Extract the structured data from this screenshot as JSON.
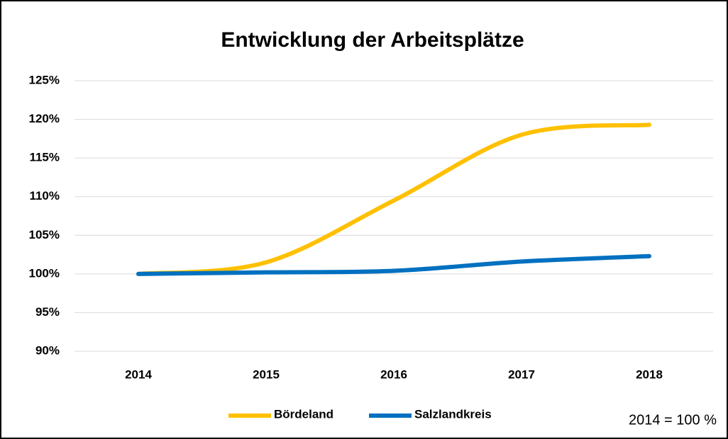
{
  "chart_data": {
    "type": "line",
    "title": "Entwicklung der Arbeitsplätze",
    "categories": [
      "2014",
      "2015",
      "2016",
      "2017",
      "2018"
    ],
    "series": [
      {
        "name": "Bördeland",
        "color": "#ffc000",
        "values": [
          100,
          101.5,
          109.5,
          118,
          119.3
        ]
      },
      {
        "name": "Salzlandkreis",
        "color": "#0070c0",
        "values": [
          100,
          100.2,
          100.4,
          101.6,
          102.3
        ]
      }
    ],
    "ylim": [
      90,
      125
    ],
    "yticks": [
      {
        "value": 90,
        "label": "90%"
      },
      {
        "value": 95,
        "label": "95%"
      },
      {
        "value": 100,
        "label": "100%"
      },
      {
        "value": 105,
        "label": "105%"
      },
      {
        "value": 110,
        "label": "110%"
      },
      {
        "value": 115,
        "label": "115%"
      },
      {
        "value": 120,
        "label": "120%"
      },
      {
        "value": 125,
        "label": "125%"
      }
    ],
    "grid": true,
    "smooth": true,
    "legend": "bottom",
    "annotation": "2014 = 100 %"
  }
}
